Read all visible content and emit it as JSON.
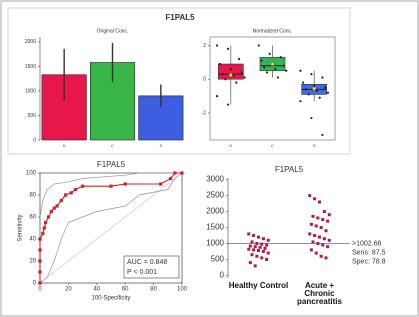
{
  "header": {
    "title": "F1PAL5"
  },
  "chart_data": [
    {
      "type": "bar",
      "title": "Original Conc.",
      "categories": [
        "K",
        "C",
        "S"
      ],
      "values": [
        1330,
        1580,
        900
      ],
      "errors": [
        530,
        400,
        230
      ],
      "colors": [
        "#e8174b",
        "#39b54a",
        "#3d5ee0"
      ],
      "ylim": [
        0,
        2100
      ],
      "yticks": [
        0,
        500,
        1000,
        1500,
        2000
      ]
    },
    {
      "type": "box",
      "title": "Normalized Conc.",
      "categories": [
        "K",
        "C",
        "S"
      ],
      "q1": [
        0,
        0.5,
        -0.9
      ],
      "median": [
        0.3,
        0.8,
        -0.6
      ],
      "q3": [
        0.9,
        1.3,
        -0.3
      ],
      "whisker_low": [
        -1.5,
        0.1,
        -1.3
      ],
      "whisker_high": [
        2,
        2,
        0.5
      ],
      "mean": [
        0.25,
        0.9,
        -0.55
      ],
      "points": [
        [
          2.0,
          1.8,
          1.2,
          0.9,
          0.6,
          0.4,
          0.3,
          0.2,
          0.1,
          0,
          -0.2,
          -1.0,
          -1.5
        ],
        [
          2.0,
          1.5,
          1.3,
          1.1,
          0.9,
          0.8,
          0.7,
          0.6,
          0.5,
          0.4,
          0.1
        ],
        [
          0.5,
          0.3,
          0.1,
          -0.2,
          -0.4,
          -0.5,
          -0.6,
          -0.7,
          -0.8,
          -0.9,
          -1.1,
          -1.3,
          -2.3,
          -3.3
        ]
      ],
      "colors": [
        "#e8174b",
        "#35b35a",
        "#4169e1"
      ],
      "mean_color": "#f2d22e",
      "ylim": [
        -3.6,
        2.5
      ],
      "yticks": [
        -2,
        0,
        2
      ]
    },
    {
      "type": "line",
      "title": "F1PAL5",
      "x_label": "100-Specificity",
      "y_label": "Sensitivity",
      "xlim": [
        0,
        100
      ],
      "ylim": [
        0,
        100
      ],
      "xticks": [
        0,
        20,
        40,
        60,
        80,
        100
      ],
      "yticks": [
        0,
        20,
        40,
        60,
        80,
        100
      ],
      "series": [
        {
          "color": "#c9ccd6",
          "x": [
            0,
            100
          ],
          "values": [
            0,
            100
          ]
        },
        {
          "color": "#8f96a8",
          "x": [
            0,
            5,
            10,
            15,
            20,
            30,
            40,
            60,
            70,
            90,
            95,
            100
          ],
          "values": [
            0,
            5,
            20,
            40,
            55,
            60,
            65,
            70,
            80,
            85,
            95,
            100
          ]
        },
        {
          "color": "#8f96a8",
          "x": [
            0,
            2,
            5,
            10,
            20,
            30,
            60,
            70,
            100
          ],
          "values": [
            60,
            75,
            85,
            90,
            92,
            95,
            98,
            100,
            100
          ]
        },
        {
          "color": "#d0202a",
          "marker": true,
          "x": [
            0,
            0,
            0,
            0,
            0,
            2,
            3,
            4,
            6,
            8,
            10,
            12,
            15,
            18,
            22,
            25,
            30,
            50,
            60,
            85,
            92,
            95,
            100
          ],
          "values": [
            0,
            10,
            20,
            30,
            40,
            45,
            50,
            55,
            60,
            65,
            68,
            70,
            75,
            80,
            82,
            85,
            88,
            88,
            90,
            90,
            95,
            100,
            100
          ]
        }
      ],
      "annotations": [
        "AUC = 0.848",
        "P < 0.001"
      ]
    },
    {
      "type": "strip",
      "title": "F1PAL5",
      "categories": [
        "Healthy Control",
        "Acute + Chronic pancreatitis"
      ],
      "values": [
        [
          1300,
          1250,
          1200,
          1150,
          1100,
          1050,
          1000,
          980,
          950,
          920,
          900,
          880,
          850,
          820,
          800,
          780,
          750,
          700,
          650,
          600,
          550,
          500,
          400,
          300
        ],
        [
          2500,
          2400,
          2300,
          2000,
          1900,
          1850,
          1800,
          1750,
          1700,
          1600,
          1550,
          1500,
          1400,
          1300,
          1250,
          1200,
          1150,
          1100,
          1050,
          1000,
          950,
          900,
          800,
          700,
          600,
          550
        ]
      ],
      "color": "#b01c3c",
      "line_color": "#5a64b4",
      "ylim": [
        -80,
        3050
      ],
      "yticks": [
        0,
        500,
        1000,
        1500,
        2000,
        2500,
        3000
      ],
      "threshold": {
        "value": 1002.66,
        "label": ">1002.66"
      },
      "annotations": [
        "Sens: 87.5",
        "Spec: 78.8"
      ]
    }
  ]
}
